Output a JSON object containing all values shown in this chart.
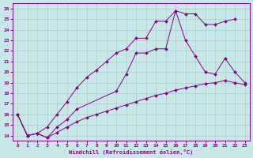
{
  "bg_color": "#c8e8e8",
  "line_color": "#880088",
  "grid_color": "#aacccc",
  "xlabel": "Windchill (Refroidissement éolien,°C)",
  "xmin": -0.5,
  "xmax": 23.5,
  "ymin": 13.5,
  "ymax": 26.5,
  "yticks": [
    14,
    15,
    16,
    17,
    18,
    19,
    20,
    21,
    22,
    23,
    24,
    25,
    26
  ],
  "xticks": [
    0,
    1,
    2,
    3,
    4,
    5,
    6,
    7,
    8,
    9,
    10,
    11,
    12,
    13,
    14,
    15,
    16,
    17,
    18,
    19,
    20,
    21,
    22,
    23
  ],
  "curve_top_x": [
    0,
    1,
    2,
    3,
    4,
    5,
    6,
    7,
    8,
    9,
    10,
    11,
    12,
    13,
    14,
    15,
    16,
    17,
    18,
    19,
    20,
    21,
    22
  ],
  "curve_top_y": [
    16,
    14,
    14.2,
    14.8,
    16.0,
    17.2,
    18.5,
    19.5,
    20.2,
    21.0,
    21.8,
    22.2,
    23.2,
    23.2,
    24.8,
    24.8,
    25.8,
    25.5,
    25.5,
    24.5,
    24.5,
    24.8,
    25.0
  ],
  "curve_mid_x": [
    0,
    1,
    2,
    3,
    4,
    5,
    6,
    10,
    11,
    12,
    13,
    14,
    15,
    16,
    17,
    18,
    19,
    20,
    21,
    22,
    23
  ],
  "curve_mid_y": [
    16,
    14,
    14.2,
    13.8,
    14.8,
    15.5,
    16.5,
    18.2,
    19.8,
    21.8,
    21.8,
    22.2,
    22.2,
    25.8,
    23.0,
    21.5,
    20.0,
    19.8,
    21.3,
    20.0,
    19.0
  ],
  "curve_bot_x": [
    0,
    1,
    2,
    3,
    4,
    5,
    6,
    7,
    8,
    9,
    10,
    11,
    12,
    13,
    14,
    15,
    16,
    17,
    18,
    19,
    20,
    21,
    22,
    23
  ],
  "curve_bot_y": [
    16,
    14,
    14.2,
    13.8,
    14.3,
    14.8,
    15.3,
    15.7,
    16.0,
    16.3,
    16.6,
    16.9,
    17.2,
    17.5,
    17.8,
    18.0,
    18.3,
    18.5,
    18.7,
    18.9,
    19.0,
    19.2,
    19.0,
    18.8
  ]
}
